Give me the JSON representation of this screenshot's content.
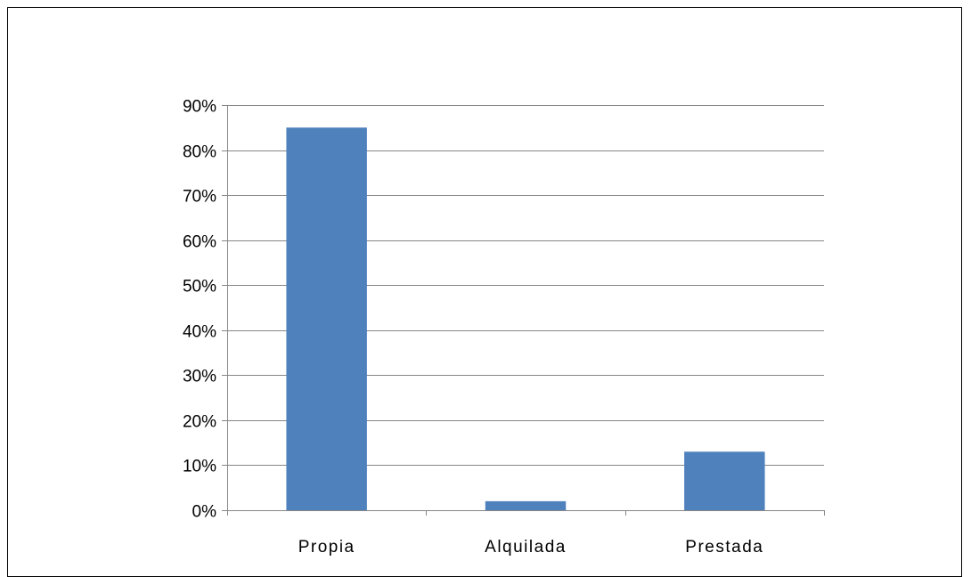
{
  "chart_data": {
    "type": "bar",
    "title": "",
    "xlabel": "",
    "ylabel": "",
    "categories": [
      "Propia",
      "Alquilada",
      "Prestada"
    ],
    "values": [
      85,
      2,
      13
    ],
    "value_format": "percent",
    "ylim": [
      0,
      90
    ],
    "ytick_step": 10,
    "grid": true,
    "legend": "none",
    "bar_color": "#4F81BD",
    "grid_color": "#868686",
    "axis_color": "#868686"
  }
}
